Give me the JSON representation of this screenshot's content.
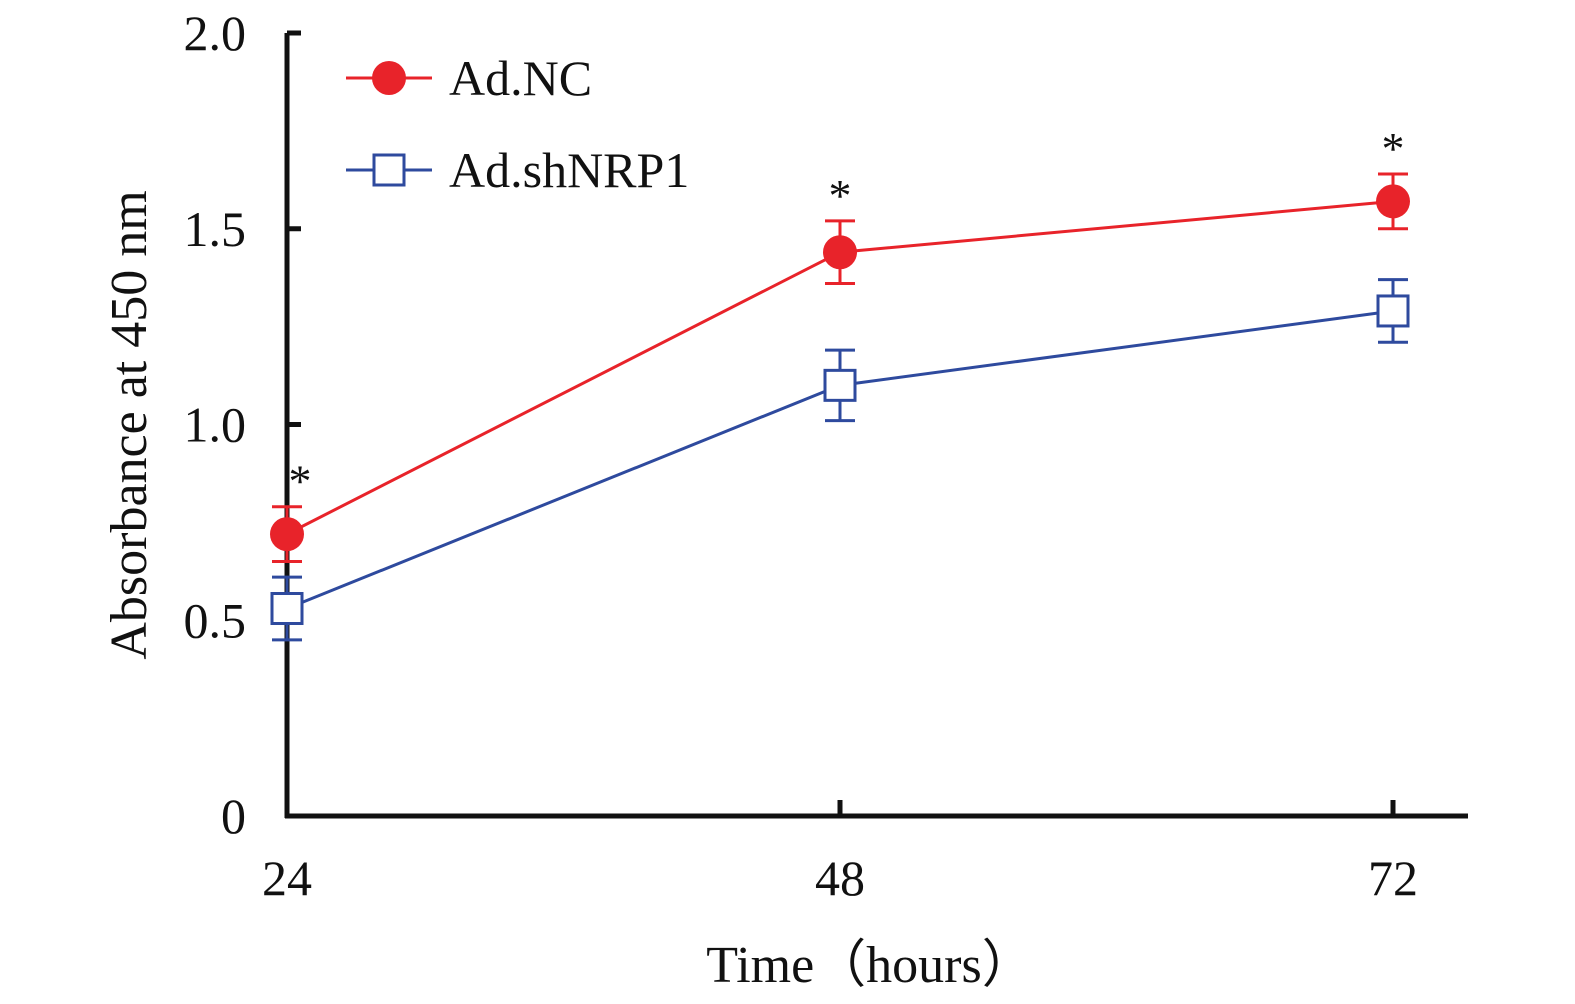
{
  "chart_data": {
    "type": "line",
    "xlabel": "Time（hours）",
    "ylabel": "Absorbance at 450 nm",
    "x": [
      24,
      48,
      72
    ],
    "x_tick_labels": [
      "24",
      "48",
      "72"
    ],
    "ylim": [
      0,
      2.0
    ],
    "y_ticks": [
      0,
      0.5,
      1.0,
      1.5,
      2.0
    ],
    "y_tick_labels": [
      "0",
      "0.5",
      "1.0",
      "1.5",
      "2.0"
    ],
    "grid": false,
    "legend_position": "top-left",
    "series": [
      {
        "name": "Ad.NC",
        "color": "#e8232a",
        "marker": "filled-circle",
        "values": [
          0.72,
          1.44,
          1.57
        ],
        "errors": [
          0.07,
          0.08,
          0.07
        ]
      },
      {
        "name": "Ad.shNRP1",
        "color": "#2e4a9e",
        "marker": "open-square",
        "values": [
          0.53,
          1.1,
          1.29
        ],
        "errors": [
          0.08,
          0.09,
          0.08
        ]
      }
    ],
    "annotations": [
      {
        "x": 24,
        "text": "*"
      },
      {
        "x": 48,
        "text": "*"
      },
      {
        "x": 72,
        "text": "*"
      }
    ]
  }
}
